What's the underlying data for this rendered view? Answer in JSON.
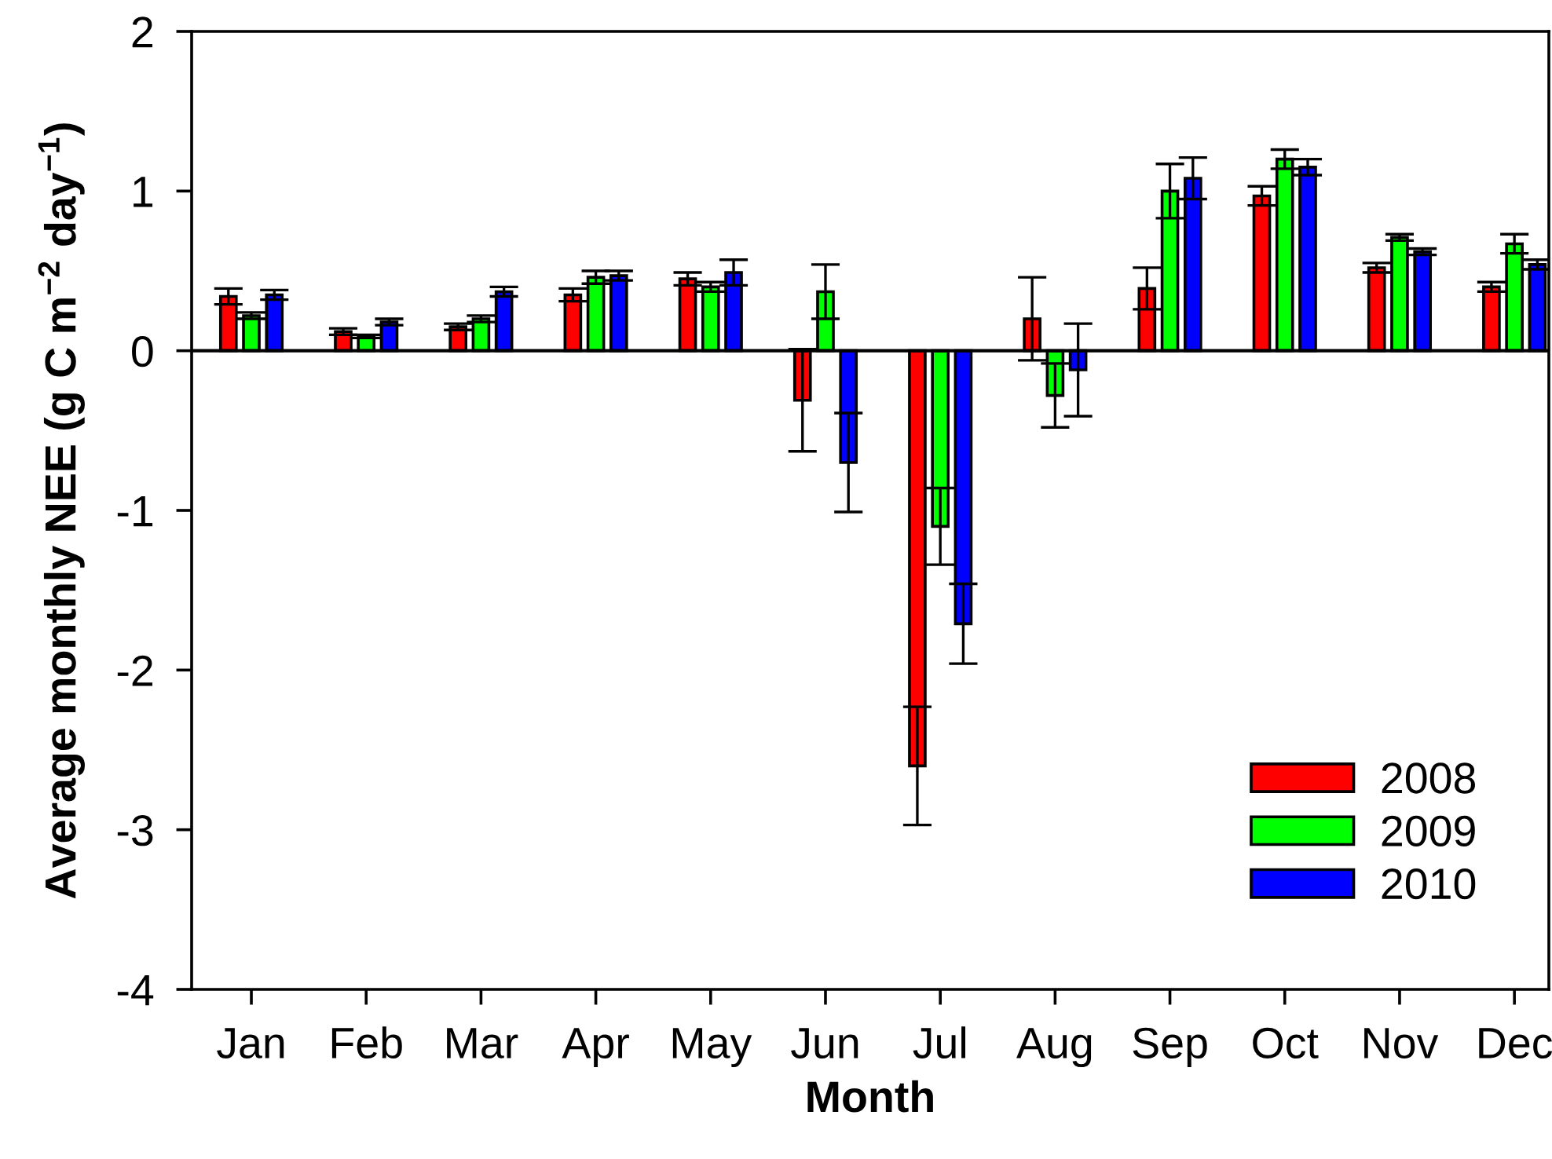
{
  "chart_data": {
    "type": "bar",
    "xlabel": "Month",
    "ylabel": "Average monthly NEE (g C m$^{−2}$ day$^{−1}$)",
    "categories": [
      "Jan",
      "Feb",
      "Mar",
      "Apr",
      "May",
      "Jun",
      "Jul",
      "Aug",
      "Sep",
      "Oct",
      "Nov",
      "Dec"
    ],
    "series": [
      {
        "name": "2008",
        "color": "#ff0000",
        "values": [
          0.34,
          0.12,
          0.15,
          0.35,
          0.45,
          -0.31,
          -2.6,
          0.2,
          0.39,
          0.97,
          0.52,
          0.4
        ],
        "errors": [
          0.05,
          0.02,
          0.02,
          0.04,
          0.04,
          0.32,
          0.37,
          0.26,
          0.13,
          0.06,
          0.03,
          0.03
        ]
      },
      {
        "name": "2009",
        "color": "#00ff00",
        "values": [
          0.22,
          0.09,
          0.2,
          0.46,
          0.4,
          0.37,
          -1.1,
          -0.28,
          1.0,
          1.2,
          0.71,
          0.67
        ],
        "errors": [
          0.02,
          0.01,
          0.02,
          0.04,
          0.03,
          0.17,
          0.24,
          0.2,
          0.17,
          0.06,
          0.02,
          0.06
        ]
      },
      {
        "name": "2010",
        "color": "#0000ff",
        "values": [
          0.35,
          0.18,
          0.37,
          0.47,
          0.49,
          -0.7,
          -1.71,
          -0.12,
          1.08,
          1.15,
          0.62,
          0.54
        ],
        "errors": [
          0.03,
          0.02,
          0.03,
          0.03,
          0.08,
          0.31,
          0.25,
          0.29,
          0.13,
          0.05,
          0.02,
          0.03
        ]
      }
    ],
    "ylim": [
      -4,
      2
    ],
    "yticks": [
      -4,
      -3,
      -2,
      -1,
      0,
      1,
      2
    ],
    "grid": false,
    "legend": "bottom right",
    "ref_lines": [
      {
        "axis": "y",
        "value": 0
      }
    ]
  }
}
